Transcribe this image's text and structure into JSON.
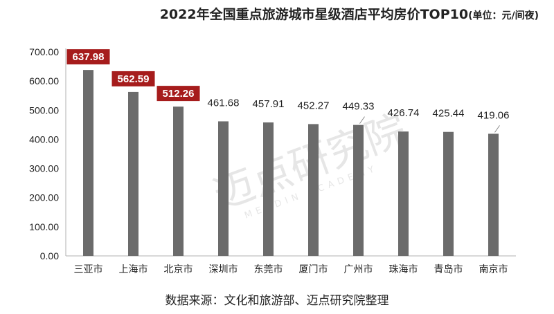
{
  "title": "2022年全国重点旅游城市星级酒店平均房价TOP10",
  "title_unit": "(单位：元/间夜)",
  "source_note": "数据来源：文化和旅游部、迈点研究院整理",
  "watermark": {
    "cn": "迈点研究院",
    "en": "MEADIN ACADEMY"
  },
  "chart_data": {
    "type": "bar",
    "categories": [
      "三亚市",
      "上海市",
      "北京市",
      "深圳市",
      "东莞市",
      "厦门市",
      "广州市",
      "珠海市",
      "青岛市",
      "南京市"
    ],
    "values": [
      637.98,
      562.59,
      512.26,
      461.68,
      457.91,
      452.27,
      449.33,
      426.74,
      425.44,
      419.06
    ],
    "value_labels": [
      "637.98",
      "562.59",
      "512.26",
      "461.68",
      "457.91",
      "452.27",
      "449.33",
      "426.74",
      "425.44",
      "419.06"
    ],
    "highlighted": [
      true,
      true,
      true,
      false,
      false,
      false,
      false,
      false,
      false,
      false
    ],
    "y_ticks": [
      "0.00",
      "100.00",
      "200.00",
      "300.00",
      "400.00",
      "500.00",
      "600.00",
      "700.00"
    ],
    "ylim": [
      0,
      700
    ],
    "grid": false,
    "colors": {
      "bar": "#6b6b6b",
      "highlight_box": "#a61c1c",
      "axis": "#b0b0b0"
    }
  }
}
